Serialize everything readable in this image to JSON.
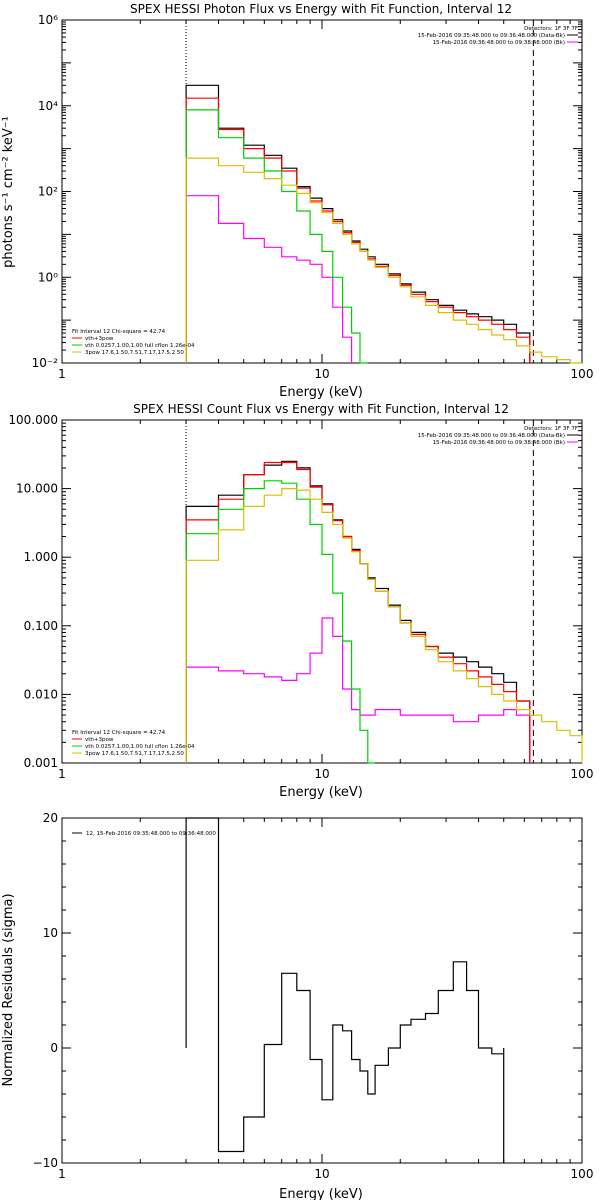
{
  "chart_data": [
    {
      "type": "line",
      "title": "SPEX HESSI Photon Flux vs Energy with Fit Function, Interval 12",
      "xlabel": "Energy (keV)",
      "ylabel": "photons s⁻¹ cm⁻² keV⁻¹",
      "xscale": "log",
      "yscale": "log",
      "xlim": [
        1,
        100
      ],
      "ylim": [
        0.01,
        1000000
      ],
      "xticks": [
        {
          "value": 1,
          "label": "1"
        },
        {
          "value": 10,
          "label": "10"
        },
        {
          "value": 100,
          "label": "100"
        }
      ],
      "yticks": [
        {
          "value": 0.01,
          "label": "10⁻²"
        },
        {
          "value": 1,
          "label": "10⁰"
        },
        {
          "value": 100,
          "label": "10²"
        },
        {
          "value": 10000,
          "label": "10⁴"
        },
        {
          "value": 1000000,
          "label": "10⁶"
        }
      ],
      "vlines": [
        {
          "x": 3.0,
          "style": "dotted"
        },
        {
          "x": 65,
          "style": "dashed"
        }
      ],
      "edges": [
        3.0,
        4.0,
        5.0,
        6.0,
        7.0,
        8.0,
        9.0,
        10.0,
        11.0,
        12.0,
        13.0,
        14.0,
        15.0,
        16.0,
        18.0,
        20.0,
        22.0,
        25.0,
        28.0,
        32.0,
        36.0,
        40.0,
        45.0,
        50.0,
        56.0,
        63.0,
        70.0,
        80.0,
        90.0,
        100.0
      ],
      "series": [
        {
          "name": "",
          "color": "#000000",
          "values": [
            30000,
            3000,
            1200,
            700,
            350,
            130,
            70,
            40,
            22,
            12,
            7,
            4.5,
            3,
            2,
            1.2,
            0.7,
            0.45,
            0.3,
            0.22,
            0.17,
            0.14,
            0.12,
            0.1,
            0.08,
            0.05,
            null,
            null,
            null,
            null
          ]
        },
        {
          "name": "",
          "color": "#ff00ff",
          "values": [
            80,
            18,
            8,
            5,
            3,
            2.5,
            2,
            1,
            0.2,
            0.04,
            null,
            null,
            null,
            null,
            null,
            null,
            null,
            null,
            null,
            null,
            null,
            null,
            null,
            null,
            null,
            null,
            null,
            null,
            null
          ]
        },
        {
          "name": "vth+3pow",
          "color": "#ff0000",
          "values": [
            15000,
            2800,
            1000,
            600,
            300,
            120,
            60,
            35,
            20,
            11,
            6.5,
            4,
            2.7,
            1.8,
            1.1,
            0.65,
            0.4,
            0.27,
            0.2,
            0.15,
            0.12,
            0.1,
            0.08,
            0.06,
            0.04,
            null,
            null,
            null,
            null
          ]
        },
        {
          "name": "vth 0.0257,1.00,1.00 full cflon 1.26e-04",
          "color": "#00d000",
          "values": [
            8000,
            1800,
            600,
            300,
            100,
            35,
            10,
            4,
            1,
            0.2,
            0.05,
            0.01,
            null,
            null,
            null,
            null,
            null,
            null,
            null,
            null,
            null,
            null,
            null,
            null,
            null,
            null,
            null,
            null,
            null
          ]
        },
        {
          "name": "3pow 17.6,1.50,7.51,7.17,17.5,2.50",
          "color": "#d8c000",
          "values": [
            600,
            400,
            280,
            200,
            140,
            90,
            55,
            32,
            18,
            10,
            6,
            4,
            2.5,
            1.7,
            1,
            0.6,
            0.35,
            0.22,
            0.15,
            0.1,
            0.08,
            0.06,
            0.045,
            0.035,
            0.025,
            0.018,
            0.014,
            0.012,
            0.01
          ]
        }
      ],
      "legend": {
        "placement": "top-right",
        "header": "Detectors: 1F 3F 7F",
        "entries": [
          {
            "label": "15-Feb-2016 09:35:48.000 to 09:36:48.000 (Data-Bk)",
            "color": "#000000"
          },
          {
            "label": "15-Feb-2016 09:36:48.000 to 09:38:48.000 (Bk)",
            "color": "#ff00ff"
          }
        ]
      },
      "fitinfo": {
        "placement": "bottom-left",
        "header": "Fit Interval 12   Chi-square = 42.74",
        "entries": [
          {
            "label": "vth+3pow",
            "color": "#ff0000"
          },
          {
            "label": "vth 0.0257,1.00,1.00 full cflon 1.26e-04",
            "color": "#00d000"
          },
          {
            "label": "3pow 17.6,1.50,7.51,7.17,17.5,2.50",
            "color": "#d8c000"
          }
        ]
      }
    },
    {
      "type": "line",
      "title": "SPEX HESSI Count Flux vs Energy with Fit Function, Interval 12",
      "xlabel": "Energy (keV)",
      "ylabel": "",
      "xscale": "log",
      "yscale": "log",
      "xlim": [
        1,
        100
      ],
      "ylim": [
        0.001,
        100
      ],
      "xticks": [
        {
          "value": 1,
          "label": "1"
        },
        {
          "value": 10,
          "label": "10"
        },
        {
          "value": 100,
          "label": "100"
        }
      ],
      "yticks": [
        {
          "value": 0.001,
          "label": "0.001"
        },
        {
          "value": 0.01,
          "label": "0.010"
        },
        {
          "value": 0.1,
          "label": "0.100"
        },
        {
          "value": 1,
          "label": "1.000"
        },
        {
          "value": 10,
          "label": "10.000"
        },
        {
          "value": 100,
          "label": "100.000"
        }
      ],
      "vlines": [
        {
          "x": 3.0,
          "style": "dotted"
        },
        {
          "x": 65,
          "style": "dashed"
        }
      ],
      "edges": [
        3.0,
        4.0,
        5.0,
        6.0,
        7.0,
        8.0,
        9.0,
        10.0,
        11.0,
        12.0,
        13.0,
        14.0,
        15.0,
        16.0,
        18.0,
        20.0,
        22.0,
        25.0,
        28.0,
        32.0,
        36.0,
        40.0,
        45.0,
        50.0,
        56.0,
        63.0,
        70.0,
        80.0,
        90.0,
        100.0
      ],
      "series": [
        {
          "name": "",
          "color": "#000000",
          "values": [
            5.5,
            8,
            16,
            22,
            25,
            20,
            11,
            6,
            3.5,
            2,
            1.3,
            0.8,
            0.5,
            0.35,
            0.2,
            0.12,
            0.08,
            0.05,
            0.04,
            0.035,
            0.03,
            0.025,
            0.02,
            0.015,
            0.008,
            null,
            null,
            null,
            null
          ]
        },
        {
          "name": "",
          "color": "#ff00ff",
          "values": [
            0.025,
            0.022,
            0.02,
            0.018,
            0.016,
            0.02,
            0.04,
            0.13,
            0.07,
            0.012,
            0.006,
            0.005,
            0.005,
            0.006,
            0.006,
            0.005,
            0.005,
            0.005,
            0.005,
            0.004,
            0.004,
            0.005,
            0.005,
            0.006,
            0.005,
            null,
            null,
            null,
            null
          ]
        },
        {
          "name": "vth+3pow",
          "color": "#ff0000",
          "values": [
            3.5,
            7,
            16,
            24,
            24,
            19,
            10.5,
            5.8,
            3.4,
            2,
            1.25,
            0.8,
            0.48,
            0.32,
            0.19,
            0.11,
            0.075,
            0.05,
            0.035,
            0.028,
            0.022,
            0.018,
            0.014,
            0.011,
            0.008,
            null,
            null,
            null,
            null
          ]
        },
        {
          "name": "vth 0.0257,1.00,1.00 full cflon 1.26e-04",
          "color": "#00d000",
          "values": [
            2.2,
            5,
            10,
            13,
            12,
            7,
            3,
            1.1,
            0.3,
            0.06,
            0.012,
            0.003,
            0.001,
            null,
            null,
            null,
            null,
            null,
            null,
            null,
            null,
            null,
            null,
            null,
            null,
            null,
            null,
            null,
            null
          ]
        },
        {
          "name": "3pow 17.6,1.50,7.51,7.17,17.5,2.50",
          "color": "#d8c000",
          "values": [
            0.9,
            2.5,
            5.5,
            8,
            10,
            9.5,
            7,
            4.5,
            3,
            1.9,
            1.2,
            0.8,
            0.48,
            0.32,
            0.19,
            0.11,
            0.07,
            0.045,
            0.03,
            0.022,
            0.017,
            0.013,
            0.01,
            0.008,
            0.006,
            0.005,
            0.004,
            0.003,
            0.0025
          ]
        }
      ],
      "legend": {
        "placement": "top-right",
        "header": "Detectors: 1F 3F 7F",
        "entries": [
          {
            "label": "15-Feb-2016 09:35:48.000 to 09:36:48.000 (Data-Bk)",
            "color": "#000000"
          },
          {
            "label": "15-Feb-2016 09:36:48.000 to 09:38:48.000 (Bk)",
            "color": "#ff00ff"
          }
        ]
      },
      "fitinfo": {
        "placement": "bottom-left",
        "header": "Fit Interval 12   Chi-square = 42.74",
        "entries": [
          {
            "label": "vth+3pow",
            "color": "#ff0000"
          },
          {
            "label": "vth 0.0257,1.00,1.00 full cflon 1.26e-04",
            "color": "#00d000"
          },
          {
            "label": "3pow 17.6,1.50,7.51,7.17,17.5,2.50",
            "color": "#d8c000"
          }
        ]
      }
    },
    {
      "type": "line",
      "title": "",
      "xlabel": "Energy (keV)",
      "ylabel": "Normalized Residuals (sigma)",
      "xscale": "log",
      "yscale": "linear",
      "xlim": [
        1,
        100
      ],
      "ylim": [
        -10,
        20
      ],
      "xticks": [
        {
          "value": 1,
          "label": "1"
        },
        {
          "value": 10,
          "label": "10"
        },
        {
          "value": 100,
          "label": "100"
        }
      ],
      "yticks": [
        {
          "value": -10,
          "label": "−10"
        },
        {
          "value": 0,
          "label": "0"
        },
        {
          "value": 10,
          "label": "10"
        },
        {
          "value": 20,
          "label": "20"
        }
      ],
      "vlines": [],
      "edges": [
        3.0,
        4.0,
        5.0,
        6.0,
        7.0,
        8.0,
        9.0,
        10.0,
        11.0,
        12.0,
        13.0,
        14.0,
        15.0,
        16.0,
        18.0,
        20.0,
        22.0,
        25.0,
        28.0,
        32.0,
        36.0,
        40.0,
        45.0,
        50.0,
        56.0,
        63.0,
        70.0
      ],
      "series": [
        {
          "name": "",
          "color": "#000000",
          "values": [
            20,
            -9,
            -6,
            0.3,
            6.5,
            5,
            -1,
            -4.5,
            2,
            1.5,
            -1,
            -2,
            -4,
            -1.5,
            0,
            2,
            2.5,
            3,
            5,
            7.5,
            5,
            0,
            -0.5,
            null,
            null,
            null
          ]
        }
      ],
      "legend": {
        "placement": "top-left",
        "header": "",
        "entries": [
          {
            "label": "12, 15-Feb-2016 09:35:48.000 to 09:36:48.000",
            "color": "#000000"
          }
        ]
      },
      "fitinfo": {
        "placement": "",
        "header": "",
        "entries": []
      }
    }
  ]
}
